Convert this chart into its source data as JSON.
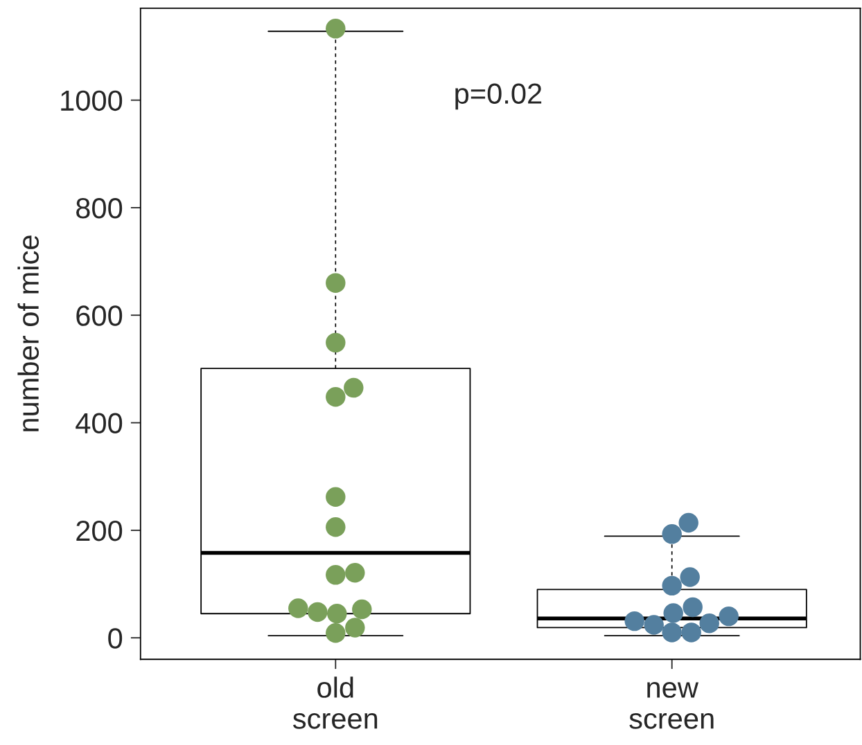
{
  "chart_data": {
    "type": "box",
    "ylabel": "number of mice",
    "categories": [
      "old\nscreen",
      "new\nscreen"
    ],
    "boxes": [
      {
        "low": 4,
        "q1": 45,
        "median": 158,
        "q3": 501,
        "high": 1128
      },
      {
        "low": 4,
        "q1": 19,
        "median": 36,
        "q3": 90,
        "high": 189
      }
    ],
    "series": [
      {
        "type": "scatter",
        "color": "#7aa05a",
        "x": [
          "old\nscreen",
          "old\nscreen",
          "old\nscreen",
          "old\nscreen",
          "old\nscreen",
          "old\nscreen",
          "old\nscreen",
          "old\nscreen",
          "old\nscreen",
          "old\nscreen",
          "old\nscreen",
          "old\nscreen",
          "old\nscreen",
          "old\nscreen",
          "old\nscreen"
        ],
        "values": [
          1133,
          660,
          549,
          465,
          448,
          262,
          206,
          117,
          121,
          53,
          55,
          48,
          45,
          19,
          9
        ]
      },
      {
        "type": "scatter",
        "color": "#537f9f",
        "x": [
          "new\nscreen",
          "new\nscreen",
          "new\nscreen",
          "new\nscreen",
          "new\nscreen",
          "new\nscreen",
          "new\nscreen",
          "new\nscreen",
          "new\nscreen",
          "new\nscreen",
          "new\nscreen",
          "new\nscreen"
        ],
        "values": [
          214,
          193,
          113,
          97,
          57,
          46,
          40,
          24,
          27,
          10,
          10,
          31
        ]
      }
    ],
    "ylim": [
      -40,
      1171
    ],
    "yticks": [
      0,
      200,
      400,
      600,
      800,
      1000
    ],
    "annotations": [
      "p=0.02"
    ],
    "grid": false,
    "legend": false,
    "marker": "circle"
  }
}
